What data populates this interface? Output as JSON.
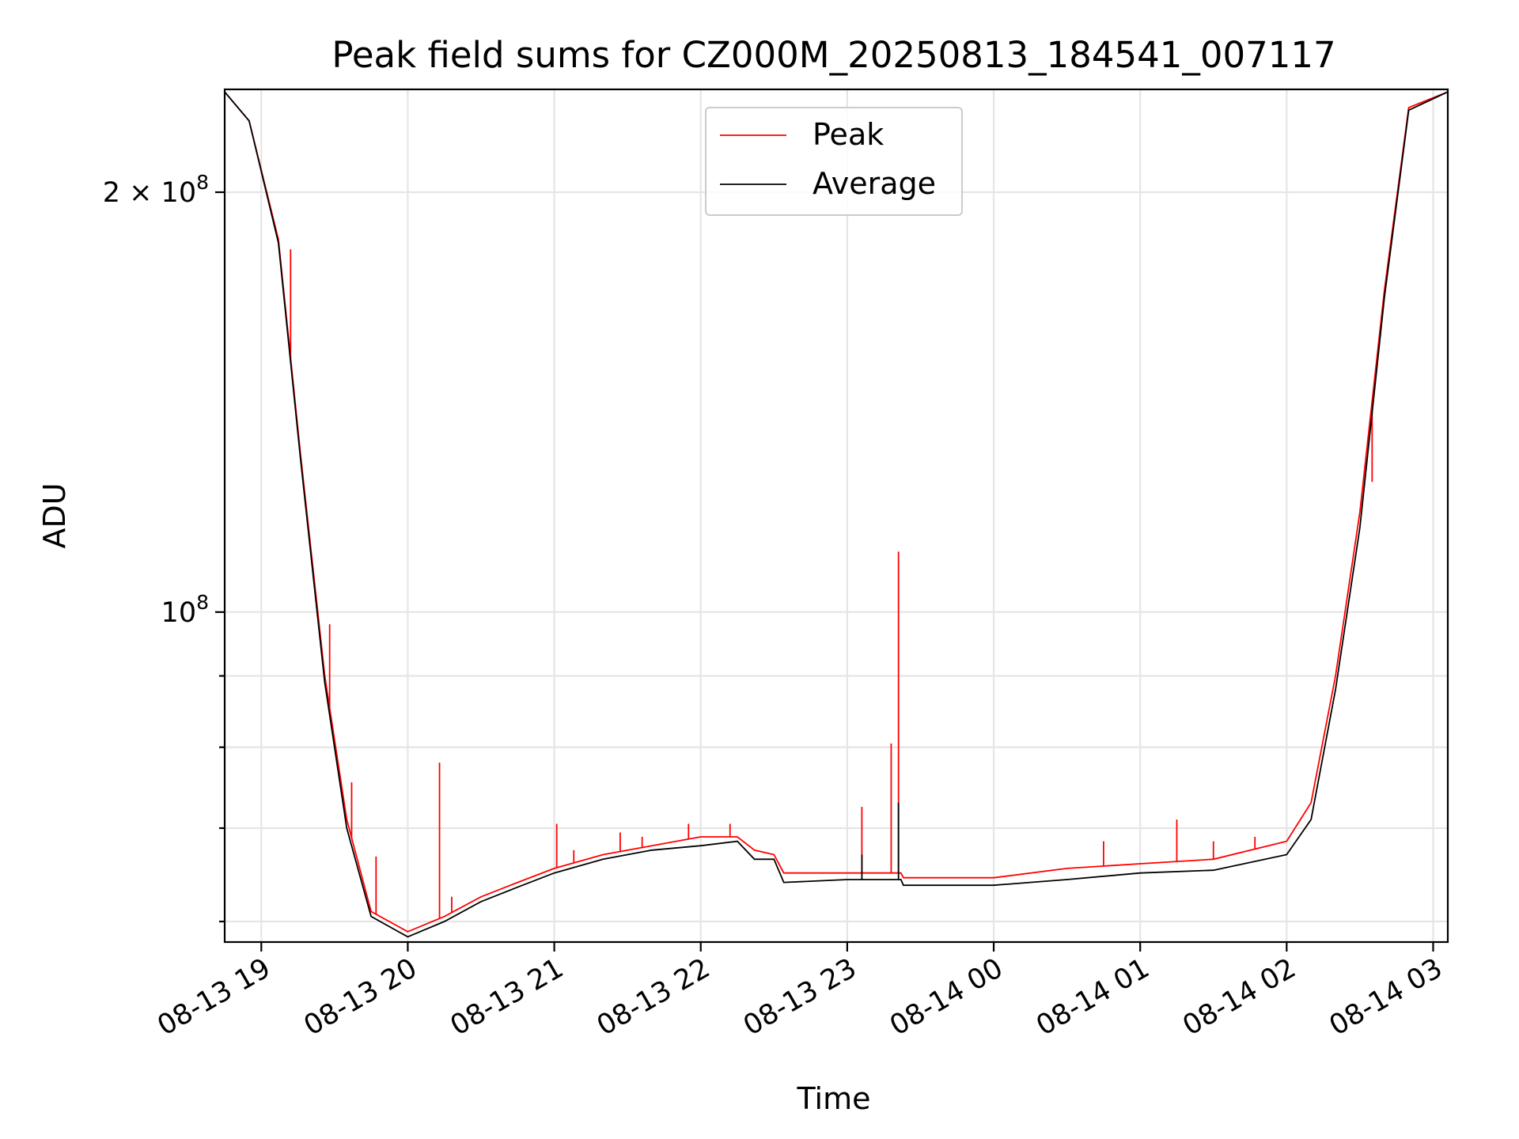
{
  "chart_data": {
    "type": "line",
    "title": "Peak field sums for CZ000M_20250813_184541_007117",
    "xlabel": "Time",
    "ylabel": "ADU",
    "yscale": "log",
    "grid": true,
    "legend_position": "top-center",
    "x_range": [
      "2025-08-13 18:45",
      "2025-08-14 03:06"
    ],
    "y_range": [
      58000000,
      237000000
    ],
    "x_ticks": [
      {
        "value": "2025-08-13 19:00",
        "label": "08-13 19"
      },
      {
        "value": "2025-08-13 20:00",
        "label": "08-13 20"
      },
      {
        "value": "2025-08-13 21:00",
        "label": "08-13 21"
      },
      {
        "value": "2025-08-13 22:00",
        "label": "08-13 22"
      },
      {
        "value": "2025-08-13 23:00",
        "label": "08-13 23"
      },
      {
        "value": "2025-08-14 00:00",
        "label": "08-14 00"
      },
      {
        "value": "2025-08-14 01:00",
        "label": "08-14 01"
      },
      {
        "value": "2025-08-14 02:00",
        "label": "08-14 02"
      },
      {
        "value": "2025-08-14 03:00",
        "label": "08-14 03"
      }
    ],
    "y_major_ticks": [
      {
        "value": 100000000,
        "base": "10",
        "exp": "8",
        "mantissa": ""
      },
      {
        "value": 200000000,
        "base": "10",
        "exp": "8",
        "mantissa": "2 × "
      }
    ],
    "y_minor_ticks": [
      60000000,
      70000000,
      80000000,
      90000000
    ],
    "series": [
      {
        "name": "Peak",
        "color": "#ff0000",
        "points": [
          [
            "2025-08-13 18:45",
            236000000
          ],
          [
            "2025-08-13 18:55",
            225000000
          ],
          [
            "2025-08-13 19:07",
            185000000
          ],
          [
            "2025-08-13 19:16",
            130000000
          ],
          [
            "2025-08-13 19:26",
            90000000
          ],
          [
            "2025-08-13 19:35",
            71000000
          ],
          [
            "2025-08-13 19:45",
            61000000
          ],
          [
            "2025-08-13 20:00",
            59000000
          ],
          [
            "2025-08-13 20:15",
            60500000
          ],
          [
            "2025-08-13 20:30",
            62500000
          ],
          [
            "2025-08-13 20:45",
            64000000
          ],
          [
            "2025-08-13 21:00",
            65500000
          ],
          [
            "2025-08-13 21:20",
            67000000
          ],
          [
            "2025-08-13 21:40",
            68000000
          ],
          [
            "2025-08-13 22:00",
            69000000
          ],
          [
            "2025-08-13 22:15",
            69000000
          ],
          [
            "2025-08-13 22:22",
            67500000
          ],
          [
            "2025-08-13 22:30",
            67000000
          ],
          [
            "2025-08-13 22:34",
            65000000
          ],
          [
            "2025-08-13 23:00",
            65000000
          ],
          [
            "2025-08-13 23:22",
            65000000
          ],
          [
            "2025-08-13 23:23",
            64500000
          ],
          [
            "2025-08-14 00:00",
            64500000
          ],
          [
            "2025-08-14 00:30",
            65500000
          ],
          [
            "2025-08-14 01:00",
            66000000
          ],
          [
            "2025-08-14 01:30",
            66500000
          ],
          [
            "2025-08-14 02:00",
            68500000
          ],
          [
            "2025-08-14 02:10",
            73000000
          ],
          [
            "2025-08-14 02:20",
            90000000
          ],
          [
            "2025-08-14 02:30",
            118000000
          ],
          [
            "2025-08-14 02:40",
            170000000
          ],
          [
            "2025-08-14 02:50",
            230000000
          ],
          [
            "2025-08-14 03:06",
            236000000
          ]
        ],
        "spikes": [
          [
            "2025-08-13 19:12",
            182000000
          ],
          [
            "2025-08-13 19:28",
            98000000
          ],
          [
            "2025-08-13 19:37",
            75500000
          ],
          [
            "2025-08-13 19:47",
            66800000
          ],
          [
            "2025-08-13 20:13",
            78000000
          ],
          [
            "2025-08-13 20:18",
            62500000
          ],
          [
            "2025-08-13 21:01",
            70500000
          ],
          [
            "2025-08-13 21:08",
            67500000
          ],
          [
            "2025-08-13 21:27",
            69500000
          ],
          [
            "2025-08-13 21:36",
            69000000
          ],
          [
            "2025-08-13 21:55",
            70500000
          ],
          [
            "2025-08-13 22:12",
            70500000
          ],
          [
            "2025-08-13 23:06",
            72500000
          ],
          [
            "2025-08-13 23:18",
            80500000
          ],
          [
            "2025-08-13 23:21",
            110500000
          ],
          [
            "2025-08-14 00:45",
            68500000
          ],
          [
            "2025-08-14 01:15",
            71000000
          ],
          [
            "2025-08-14 01:30",
            68500000
          ],
          [
            "2025-08-14 01:47",
            69000000
          ],
          [
            "2025-08-14 02:35",
            124000000
          ]
        ]
      },
      {
        "name": "Average",
        "color": "#000000",
        "points": [
          [
            "2025-08-13 18:45",
            236000000
          ],
          [
            "2025-08-13 18:55",
            225000000
          ],
          [
            "2025-08-13 19:07",
            184000000
          ],
          [
            "2025-08-13 19:16",
            129000000
          ],
          [
            "2025-08-13 19:26",
            89000000
          ],
          [
            "2025-08-13 19:35",
            70000000
          ],
          [
            "2025-08-13 19:45",
            60500000
          ],
          [
            "2025-08-13 20:00",
            58500000
          ],
          [
            "2025-08-13 20:15",
            60000000
          ],
          [
            "2025-08-13 20:30",
            62000000
          ],
          [
            "2025-08-13 20:45",
            63500000
          ],
          [
            "2025-08-13 21:00",
            65000000
          ],
          [
            "2025-08-13 21:20",
            66500000
          ],
          [
            "2025-08-13 21:40",
            67500000
          ],
          [
            "2025-08-13 22:00",
            68000000
          ],
          [
            "2025-08-13 22:15",
            68500000
          ],
          [
            "2025-08-13 22:22",
            66500000
          ],
          [
            "2025-08-13 22:30",
            66500000
          ],
          [
            "2025-08-13 22:34",
            64000000
          ],
          [
            "2025-08-13 23:00",
            64300000
          ],
          [
            "2025-08-13 23:22",
            64300000
          ],
          [
            "2025-08-13 23:23",
            63700000
          ],
          [
            "2025-08-14 00:00",
            63700000
          ],
          [
            "2025-08-14 00:30",
            64300000
          ],
          [
            "2025-08-14 01:00",
            65000000
          ],
          [
            "2025-08-14 01:30",
            65300000
          ],
          [
            "2025-08-14 02:00",
            67000000
          ],
          [
            "2025-08-14 02:10",
            71000000
          ],
          [
            "2025-08-14 02:20",
            88000000
          ],
          [
            "2025-08-14 02:30",
            115000000
          ],
          [
            "2025-08-14 02:40",
            168000000
          ],
          [
            "2025-08-14 02:50",
            229000000
          ],
          [
            "2025-08-14 03:06",
            236000000
          ]
        ],
        "spikes": [
          [
            "2025-08-13 23:06",
            67000000
          ],
          [
            "2025-08-13 23:21",
            73000000
          ]
        ]
      }
    ]
  }
}
